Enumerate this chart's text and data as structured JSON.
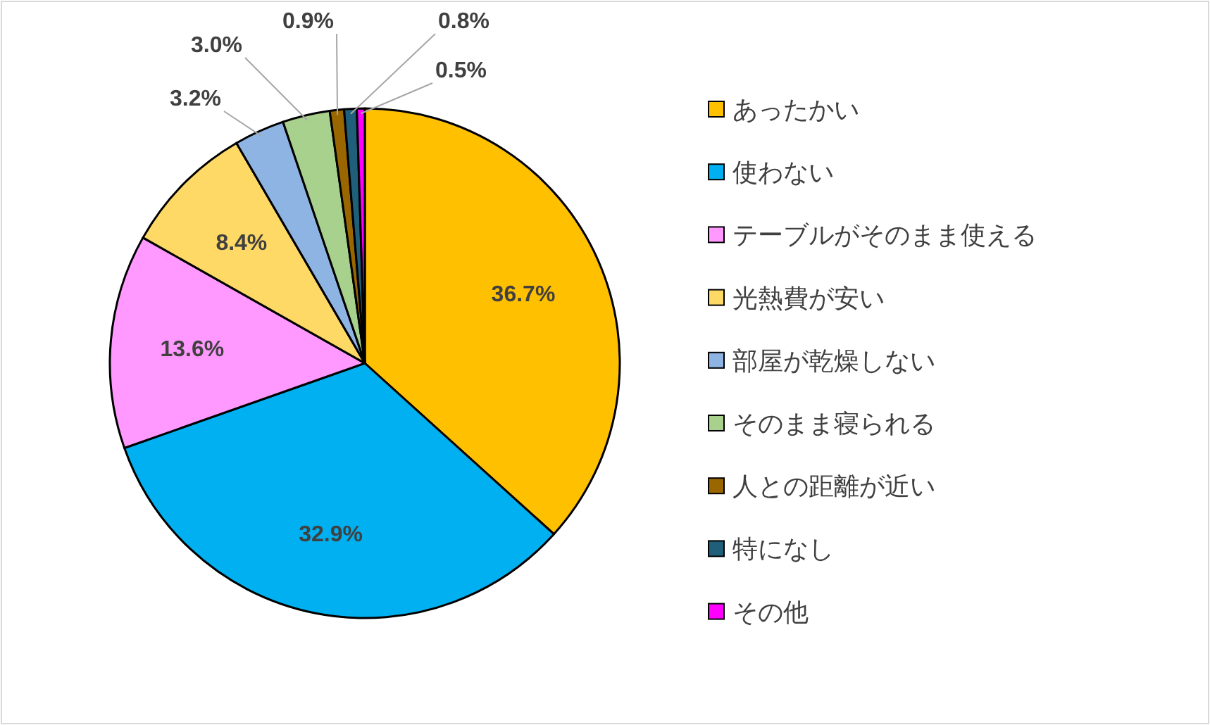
{
  "chart_data": {
    "type": "pie",
    "categories": [
      "あったかい",
      "使わない",
      "テーブルがそのまま使える",
      "光熱費が安い",
      "部屋が乾燥しない",
      "そのまま寝られる",
      "人との距離が近い",
      "特になし",
      "その他"
    ],
    "values": [
      36.7,
      32.9,
      13.6,
      8.4,
      3.2,
      3.0,
      0.9,
      0.8,
      0.5
    ],
    "colors": [
      "#ffc000",
      "#00b0f0",
      "#ff99ff",
      "#ffd966",
      "#8eb4e3",
      "#a9d18e",
      "#996600",
      "#1f5f7a",
      "#ff00ff"
    ],
    "value_labels": [
      "36.7%",
      "32.9%",
      "13.6%",
      "8.4%",
      "3.2%",
      "3.0%",
      "0.9%",
      "0.8%",
      "0.5%"
    ],
    "legend": "right"
  }
}
